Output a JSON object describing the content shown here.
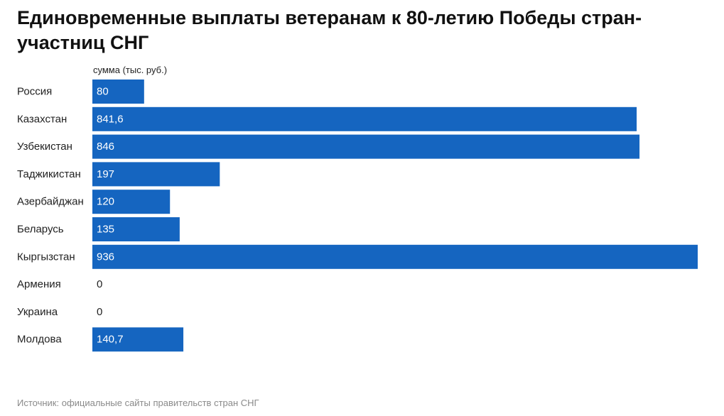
{
  "title": "Единовременные выплаты ветеранам к 80-летию Победы стран-участниц СНГ",
  "source": "Источник: официальные сайты правительств стран СНГ",
  "colors": {
    "bar": "#1565c0",
    "label_inside": "#ffffff",
    "label_outside": "#222222",
    "text": "#222222",
    "source": "#8a8a8a"
  },
  "chart_data": {
    "type": "bar",
    "orientation": "horizontal",
    "title": "Единовременные выплаты ветеранам к 80-летию Победы стран-участниц СНГ",
    "column_header": "сумма (тыс. руб.)",
    "categories": [
      "Россия",
      "Казахстан",
      "Узбекистан",
      "Таджикистан",
      "Азербайджан",
      "Беларусь",
      "Кыргызстан",
      "Армения",
      "Украина",
      "Молдова"
    ],
    "values": [
      80,
      841.6,
      846,
      197,
      120,
      135,
      936,
      0,
      0,
      140.7
    ],
    "value_labels": [
      "80",
      "841,6",
      "846",
      "197",
      "120",
      "135",
      "936",
      "0",
      "0",
      "140,7"
    ],
    "xlim": [
      0,
      936
    ],
    "grid": false,
    "legend": "none"
  }
}
